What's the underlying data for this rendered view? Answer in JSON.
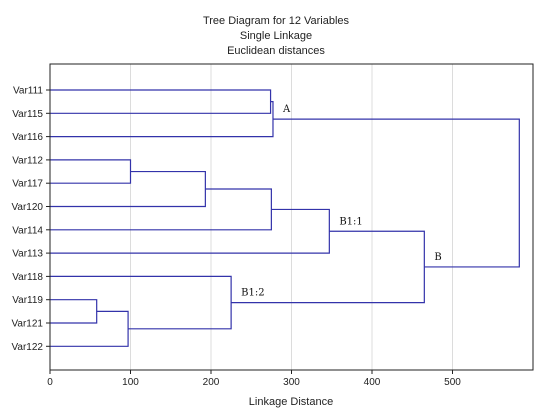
{
  "chart_data": {
    "type": "dendrogram",
    "title": [
      "Tree Diagram for 12  Variables",
      "Single Linkage",
      "Euclidean distances"
    ],
    "xlabel": "Linkage Distance",
    "xlim": [
      0,
      600
    ],
    "xticks": [
      0,
      100,
      200,
      300,
      400,
      500
    ],
    "grid": true,
    "line_color": "#3333aa",
    "leaves": [
      "Var111",
      "Var115",
      "Var116",
      "Var112",
      "Var117",
      "Var120",
      "Var114",
      "Var113",
      "Var118",
      "Var119",
      "Var121",
      "Var122"
    ],
    "merges": [
      {
        "a": "Var119",
        "b": "Var121",
        "height": 58
      },
      {
        "a": "M1",
        "b": "Var122",
        "height": 97
      },
      {
        "a": "Var112",
        "b": "Var117",
        "height": 100
      },
      {
        "a": "M3",
        "b": "Var120",
        "height": 193
      },
      {
        "a": "Var118",
        "b": "M2",
        "height": 225
      },
      {
        "a": "Var111",
        "b": "Var115",
        "height": 274
      },
      {
        "a": "M6",
        "b": "Var116",
        "height": 277
      },
      {
        "a": "M4",
        "b": "Var114",
        "height": 275
      },
      {
        "a": "M8",
        "b": "Var113",
        "height": 347
      },
      {
        "a": "M9",
        "b": "M5",
        "height": 465
      },
      {
        "a": "M7",
        "b": "M10",
        "height": 583
      }
    ],
    "annotations": [
      {
        "label": "A",
        "node": "M7"
      },
      {
        "label": "B1:1",
        "node": "M9"
      },
      {
        "label": "B1:2",
        "node": "M5"
      },
      {
        "label": "B",
        "node": "M10"
      }
    ]
  }
}
